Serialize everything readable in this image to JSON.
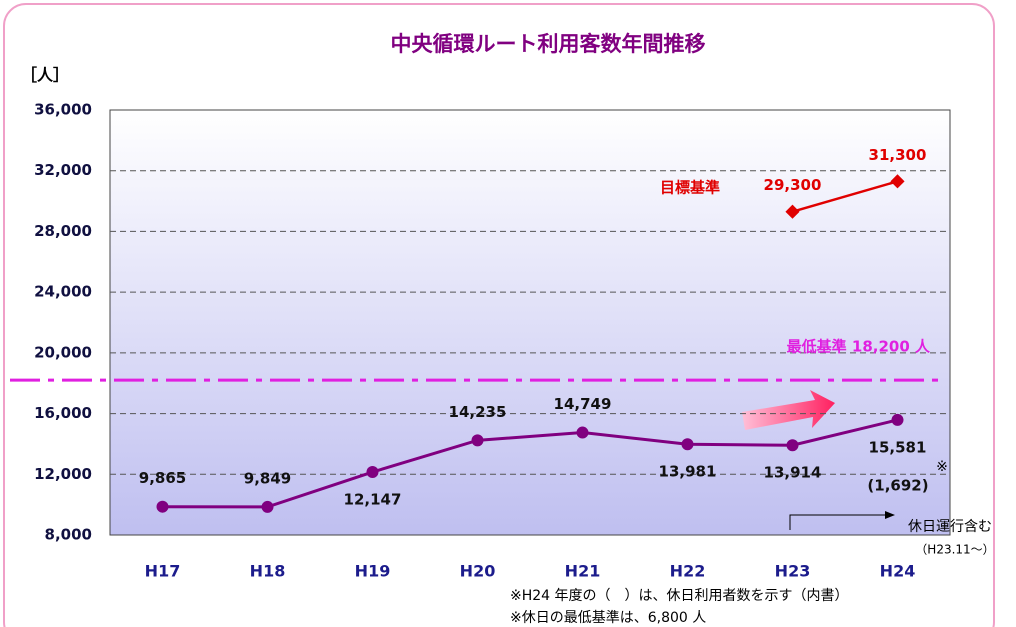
{
  "chart_data": {
    "type": "line",
    "title": "中央循環ルート利用客数年間推移",
    "y_axis_label": "［人］",
    "categories": [
      "H17",
      "H18",
      "H19",
      "H20",
      "H21",
      "H22",
      "H23",
      "H24"
    ],
    "series": [
      {
        "color": "#800080",
        "values": [
          9865,
          9849,
          12147,
          14235,
          14749,
          13981,
          13914,
          15581
        ],
        "value_labels": [
          "9,865",
          "9,849",
          "12,147",
          "14,235",
          "14,749",
          "13,981",
          "13,914",
          "15,581"
        ]
      },
      {
        "name": "目標基準",
        "color": "#e00000",
        "values": [
          null,
          null,
          null,
          null,
          null,
          null,
          29300,
          31300
        ],
        "value_labels": [
          null,
          null,
          null,
          null,
          null,
          null,
          "29,300",
          "31,300"
        ]
      }
    ],
    "reference_line": {
      "value": 18200,
      "label": "最低基準 18,200 人",
      "color": "#e020e0"
    },
    "ylim": [
      8000,
      36000
    ],
    "yticks": [
      {
        "value": 8000,
        "label": "8,000"
      },
      {
        "value": 12000,
        "label": "12,000"
      },
      {
        "value": 16000,
        "label": "16,000"
      },
      {
        "value": 20000,
        "label": "20,000"
      },
      {
        "value": 24000,
        "label": "24,000"
      },
      {
        "value": 28000,
        "label": "28,000"
      },
      {
        "value": 32000,
        "label": "32,000"
      },
      {
        "value": 36000,
        "label": "36,000"
      }
    ],
    "grid": true,
    "annotations": {
      "holiday_h24": "(1,692)",
      "asterisk": "※",
      "holiday_service": "休日運行含む",
      "holiday_since": "（H23.11～）",
      "note_1": "※H24 年度の（　）は、休日利用者数を示す（内書）",
      "note_2": "※休日の最低基準は、6,800 人"
    }
  }
}
